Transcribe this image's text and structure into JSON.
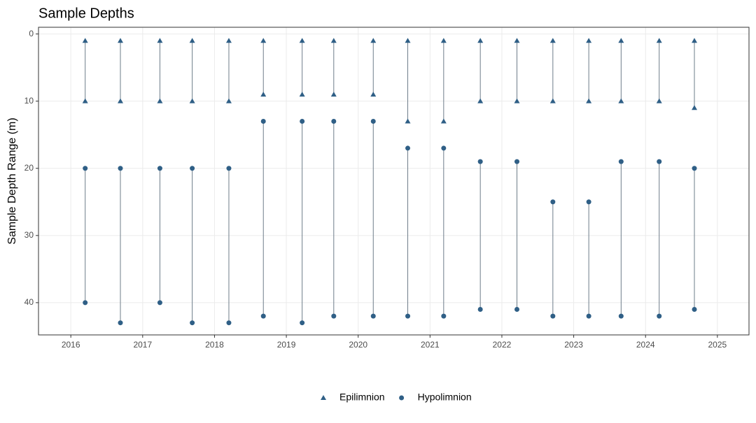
{
  "chart_data": {
    "type": "range_dot",
    "title": "Sample Depths",
    "y_label": "Sample Depth Range (m)",
    "xlim": [
      2015.55,
      2025.44
    ],
    "xticks": [
      2016,
      2017,
      2018,
      2019,
      2020,
      2021,
      2022,
      2023,
      2024,
      2025
    ],
    "ylim": [
      -1,
      44.8
    ],
    "yticks": [
      0,
      10,
      20,
      30,
      40
    ],
    "y_reversed": true,
    "grid": true,
    "legend": "bottom",
    "line_color": "#6e7d8a",
    "series": [
      {
        "name": "Epilimnion",
        "color": "#2f5f86",
        "marker": "triangle",
        "x": [
          2016.2,
          2016.2,
          2016.69,
          2016.69,
          2017.24,
          2017.24,
          2017.69,
          2017.69,
          2018.2,
          2018.2,
          2018.68,
          2018.68,
          2019.22,
          2019.22,
          2019.66,
          2019.66,
          2020.21,
          2020.21,
          2020.69,
          2020.69,
          2021.19,
          2021.19,
          2021.7,
          2021.7,
          2022.21,
          2022.21,
          2022.71,
          2022.71,
          2023.21,
          2023.21,
          2023.66,
          2023.66,
          2024.19,
          2024.19,
          2024.68,
          2024.68
        ],
        "values": [
          1,
          10,
          1,
          10,
          1,
          10,
          1,
          10,
          1,
          10,
          1,
          9,
          1,
          9,
          1,
          9,
          1,
          9,
          1,
          13,
          1,
          13,
          1,
          10,
          1,
          10,
          1,
          10,
          1,
          10,
          1,
          10,
          1,
          10,
          1,
          11
        ]
      },
      {
        "name": "Hypolimnion",
        "color": "#2f5f86",
        "marker": "circle",
        "x": [
          2016.2,
          2016.2,
          2016.69,
          2016.69,
          2017.24,
          2017.24,
          2017.69,
          2017.69,
          2018.2,
          2018.2,
          2018.68,
          2018.68,
          2019.22,
          2019.22,
          2019.66,
          2019.66,
          2020.21,
          2020.21,
          2020.69,
          2020.69,
          2021.19,
          2021.19,
          2021.7,
          2021.7,
          2022.21,
          2022.21,
          2022.71,
          2022.71,
          2023.21,
          2023.21,
          2023.66,
          2023.66,
          2024.19,
          2024.19,
          2024.68,
          2024.68
        ],
        "values": [
          20,
          40,
          20,
          43,
          20,
          40,
          20,
          43,
          20,
          43,
          13,
          42,
          13,
          43,
          13,
          42,
          13,
          42,
          17,
          42,
          17,
          42,
          19,
          41,
          19,
          41,
          25,
          42,
          25,
          42,
          19,
          42,
          19,
          42,
          20,
          41
        ]
      }
    ]
  }
}
